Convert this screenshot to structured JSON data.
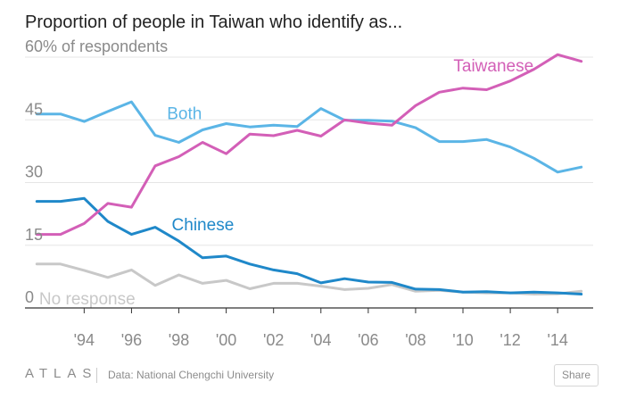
{
  "chart_data": {
    "type": "line",
    "title": "Proportion of people in Taiwan who identify as...",
    "y_unit_label": "60% of respondents",
    "ylim": [
      0,
      60
    ],
    "y_ticks": [
      0,
      15,
      30,
      45,
      60
    ],
    "y_tick_labels": [
      "0",
      "15",
      "30",
      "45",
      "60% of respondents"
    ],
    "xlim": [
      1991.5,
      2015.5
    ],
    "x_ticks": [
      1994,
      1996,
      1998,
      2000,
      2002,
      2004,
      2006,
      2008,
      2010,
      2012,
      2014
    ],
    "x_tick_labels": [
      "'94",
      "'96",
      "'98",
      "'00",
      "'02",
      "'04",
      "'06",
      "'08",
      "'10",
      "'12",
      "'14"
    ],
    "grid": "horizontal",
    "x": [
      1992,
      1993,
      1994,
      1995,
      1996,
      1997,
      1998,
      1999,
      2000,
      2001,
      2002,
      2003,
      2004,
      2005,
      2006,
      2007,
      2008,
      2009,
      2010,
      2011,
      2012,
      2013,
      2014,
      2015
    ],
    "series": [
      {
        "name": "Taiwanese",
        "color": "#d35fb7",
        "values": [
          17.6,
          17.6,
          20.2,
          25.0,
          24.1,
          34.0,
          36.2,
          39.6,
          36.9,
          41.6,
          41.2,
          42.5,
          41.1,
          45.0,
          44.2,
          43.7,
          48.4,
          51.6,
          52.6,
          52.2,
          54.3,
          57.1,
          60.6,
          59.0
        ]
      },
      {
        "name": "Both",
        "color": "#5bb5e6",
        "values": [
          46.4,
          46.4,
          44.6,
          47.0,
          49.3,
          41.3,
          39.6,
          42.6,
          44.1,
          43.3,
          43.7,
          43.4,
          47.7,
          44.9,
          44.9,
          44.7,
          43.1,
          39.8,
          39.8,
          40.3,
          38.5,
          35.8,
          32.5,
          33.7
        ]
      },
      {
        "name": "Chinese",
        "color": "#1f88c9",
        "values": [
          25.5,
          25.5,
          26.2,
          20.7,
          17.6,
          19.3,
          16.0,
          12.0,
          12.4,
          10.5,
          9.1,
          8.2,
          6.0,
          7.0,
          6.2,
          6.1,
          4.5,
          4.4,
          3.8,
          3.9,
          3.6,
          3.8,
          3.6,
          3.3
        ]
      },
      {
        "name": "No response",
        "color": "#c8c8c8",
        "values": [
          10.5,
          10.5,
          9.0,
          7.3,
          9.1,
          5.4,
          7.9,
          5.9,
          6.6,
          4.6,
          5.9,
          5.9,
          5.2,
          4.4,
          4.7,
          5.6,
          4.0,
          4.2,
          3.8,
          3.6,
          3.6,
          3.3,
          3.4,
          4.0
        ]
      }
    ],
    "series_labels": [
      {
        "name": "Taiwanese",
        "text": "Taiwanese",
        "x": 2009.6,
        "y": 56.6
      },
      {
        "name": "Both",
        "text": "Both",
        "x": 1997.5,
        "y": 45.2
      },
      {
        "name": "Chinese",
        "text": "Chinese",
        "x": 1997.7,
        "y": 18.6
      },
      {
        "name": "No response",
        "text": "No response",
        "x": 1992.1,
        "y": 0.9
      }
    ]
  },
  "footer": {
    "logo": "ATLAS",
    "source": "Data: National Chengchi University",
    "share_label": "Share"
  },
  "colors": {
    "text_dark": "#222222",
    "axis_text": "#8a8a8a",
    "gridline": "#e5e5e5",
    "baseline": "#333333"
  }
}
